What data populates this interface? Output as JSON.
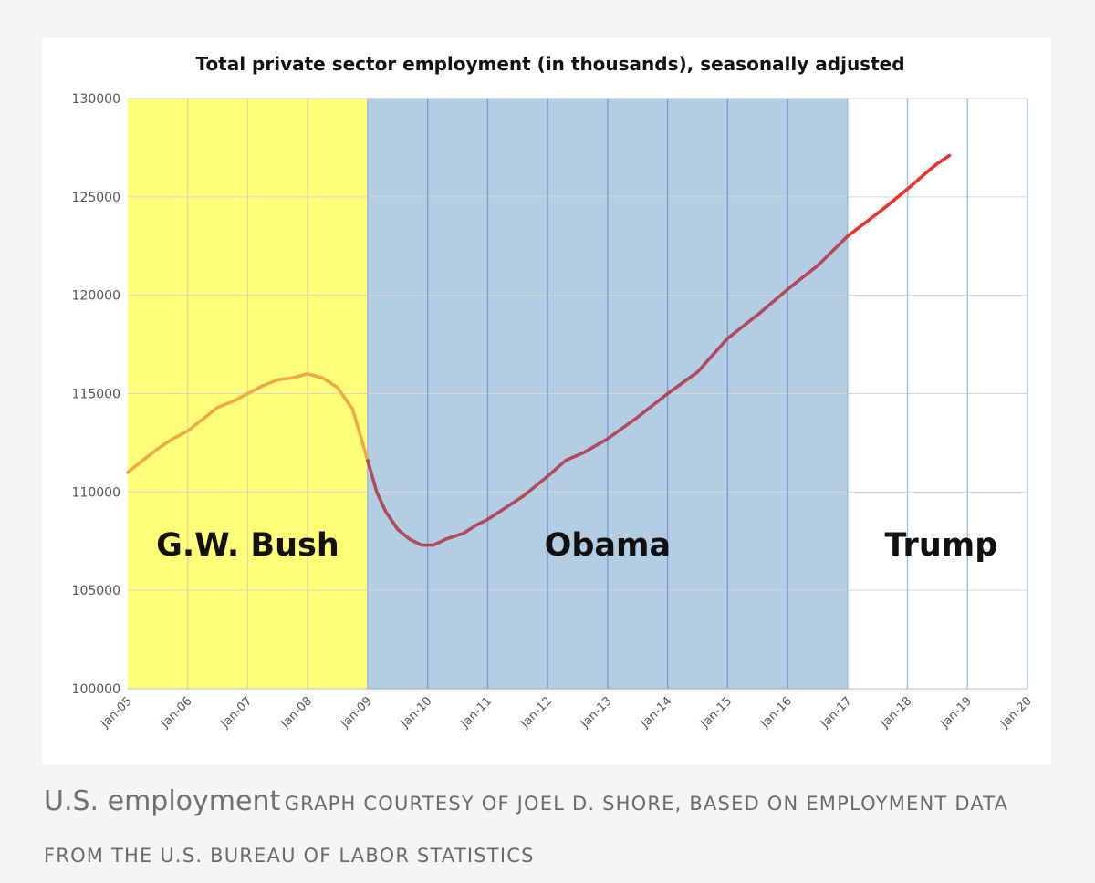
{
  "chart_data": {
    "type": "line",
    "title": "Total private sector employment (in thousands), seasonally adjusted",
    "xlabel": "",
    "ylabel": "",
    "ylim": [
      100000,
      130000
    ],
    "yticks": [
      "100000",
      "105000",
      "110000",
      "115000",
      "120000",
      "125000",
      "130000"
    ],
    "xticks": [
      "Jan-05",
      "Jan-06",
      "Jan-07",
      "Jan-08",
      "Jan-09",
      "Jan-10",
      "Jan-11",
      "Jan-12",
      "Jan-13",
      "Jan-14",
      "Jan-15",
      "Jan-16",
      "Jan-17",
      "Jan-18",
      "Jan-19",
      "Jan-20"
    ],
    "xlim": [
      2005,
      2020
    ],
    "grid": true,
    "periods": [
      {
        "name": "bush",
        "label": "G.W. Bush",
        "start": 2005,
        "end": 2009,
        "color": "#ffff7a"
      },
      {
        "name": "obama",
        "label": "Obama",
        "start": 2009,
        "end": 2017,
        "color": "#b3cde3"
      },
      {
        "name": "trump",
        "label": "Trump",
        "start": 2017,
        "end": 2020,
        "color": "#ffffff"
      }
    ],
    "series": [
      {
        "name": "bush",
        "color": "#f0a94a",
        "points": [
          [
            2005.0,
            111000
          ],
          [
            2005.25,
            111600
          ],
          [
            2005.5,
            112200
          ],
          [
            2005.75,
            112700
          ],
          [
            2006.0,
            113100
          ],
          [
            2006.25,
            113700
          ],
          [
            2006.5,
            114300
          ],
          [
            2006.75,
            114600
          ],
          [
            2007.0,
            115000
          ],
          [
            2007.25,
            115400
          ],
          [
            2007.5,
            115700
          ],
          [
            2007.75,
            115800
          ],
          [
            2008.0,
            116000
          ],
          [
            2008.25,
            115800
          ],
          [
            2008.5,
            115300
          ],
          [
            2008.75,
            114200
          ],
          [
            2009.0,
            111600
          ]
        ]
      },
      {
        "name": "obama",
        "color": "#b04a5c",
        "points": [
          [
            2009.0,
            111600
          ],
          [
            2009.15,
            110000
          ],
          [
            2009.3,
            109000
          ],
          [
            2009.5,
            108100
          ],
          [
            2009.7,
            107600
          ],
          [
            2009.9,
            107300
          ],
          [
            2010.1,
            107300
          ],
          [
            2010.3,
            107600
          ],
          [
            2010.6,
            107900
          ],
          [
            2010.8,
            108300
          ],
          [
            2011.0,
            108600
          ],
          [
            2011.3,
            109200
          ],
          [
            2011.6,
            109800
          ],
          [
            2012.0,
            110800
          ],
          [
            2012.3,
            111600
          ],
          [
            2012.6,
            112000
          ],
          [
            2013.0,
            112700
          ],
          [
            2013.5,
            113800
          ],
          [
            2014.0,
            115000
          ],
          [
            2014.5,
            116100
          ],
          [
            2015.0,
            117800
          ],
          [
            2015.5,
            119000
          ],
          [
            2016.0,
            120300
          ],
          [
            2016.5,
            121500
          ],
          [
            2017.0,
            123000
          ]
        ]
      },
      {
        "name": "trump",
        "color": "#e8342f",
        "points": [
          [
            2017.0,
            123000
          ],
          [
            2017.3,
            123700
          ],
          [
            2017.6,
            124400
          ],
          [
            2018.0,
            125400
          ],
          [
            2018.3,
            126200
          ],
          [
            2018.5,
            126700
          ],
          [
            2018.7,
            127100
          ]
        ]
      }
    ]
  },
  "caption": {
    "title": "U.S. employment",
    "credit": "GRAPH COURTESY OF JOEL D. SHORE, BASED ON EMPLOYMENT DATA FROM THE U.S. BUREAU OF LABOR STATISTICS"
  }
}
